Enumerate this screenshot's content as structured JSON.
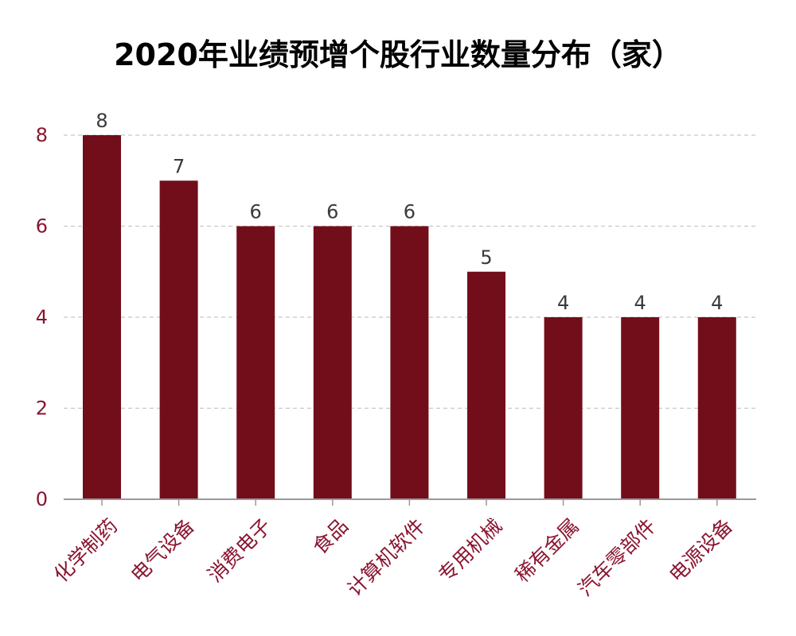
{
  "chart_data": {
    "type": "bar",
    "title": "2020年业绩预增个股行业数量分布（家）",
    "categories": [
      "化学制药",
      "电气设备",
      "消费电子",
      "食品",
      "计算机软件",
      "专用机械",
      "稀有金属",
      "汽车零部件",
      "电源设备"
    ],
    "values": [
      8,
      7,
      6,
      6,
      6,
      5,
      4,
      4,
      4
    ],
    "ylim": [
      0,
      8
    ],
    "yticks": [
      0,
      2,
      4,
      6,
      8
    ],
    "xlabel": "",
    "ylabel": "",
    "grid": true,
    "legend": "none",
    "colors": {
      "bar": "#720e1a",
      "tick_label": "#8a1530",
      "value_label": "#3a3a3a",
      "grid": "#c8c8c8",
      "axis": "#999999"
    }
  }
}
